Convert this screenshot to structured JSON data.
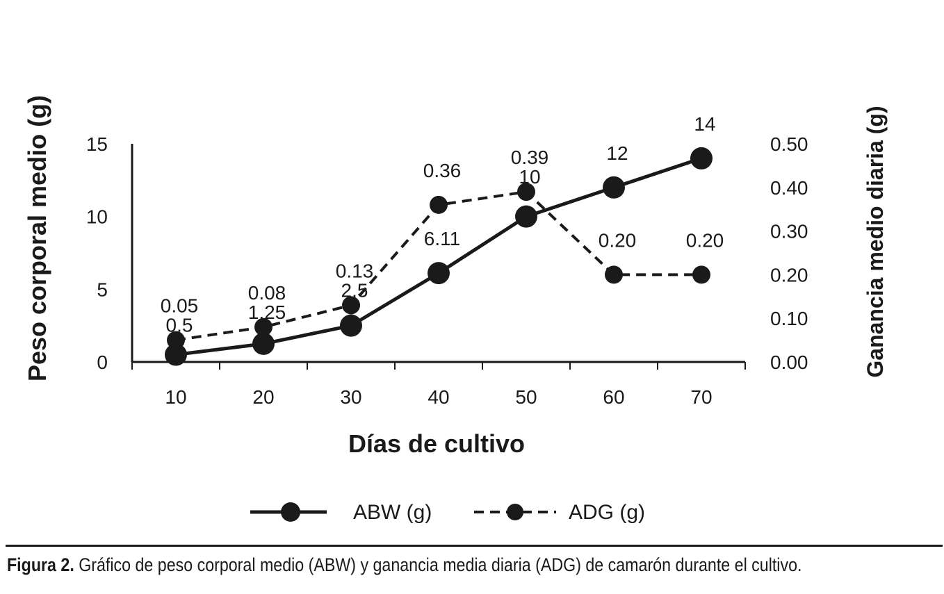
{
  "chart_data": {
    "type": "line",
    "xlabel": "Días de cultivo",
    "ylabel": "Peso corporal medio (g)",
    "y2label": "Ganancia medio diaria (g)",
    "x": [
      10,
      20,
      30,
      40,
      50,
      60,
      70
    ],
    "ylim": [
      0,
      15
    ],
    "y2lim": [
      0,
      0.5
    ],
    "yticks": [
      "0",
      "5",
      "10",
      "15"
    ],
    "y2ticks": [
      "0.00",
      "0.10",
      "0.20",
      "0.30",
      "0.40",
      "0.50"
    ],
    "xticks": [
      "10",
      "20",
      "30",
      "40",
      "50",
      "60",
      "70"
    ],
    "series": [
      {
        "name": "ABW (g)",
        "axis": "left",
        "style": "solid",
        "values": [
          0.5,
          1.25,
          2.5,
          6.11,
          10,
          12,
          14
        ],
        "labels": [
          "0.5",
          "1.25",
          "2.5",
          "6.11",
          "10",
          "12",
          "14"
        ]
      },
      {
        "name": "ADG (g)",
        "axis": "right",
        "style": "dashed",
        "values": [
          0.05,
          0.08,
          0.13,
          0.36,
          0.39,
          0.2,
          0.2
        ],
        "labels": [
          "0.05",
          "0.08",
          "0.13",
          "0.36",
          "0.39",
          "0.20",
          "0.20"
        ]
      }
    ],
    "legend_position": "bottom",
    "grid": false,
    "line_color": "#1a1a1a"
  },
  "caption": {
    "label": "Figura 2.",
    "text": " Gráfico de peso corporal medio (ABW) y ganancia media diaria (ADG) de camarón durante el cultivo."
  }
}
